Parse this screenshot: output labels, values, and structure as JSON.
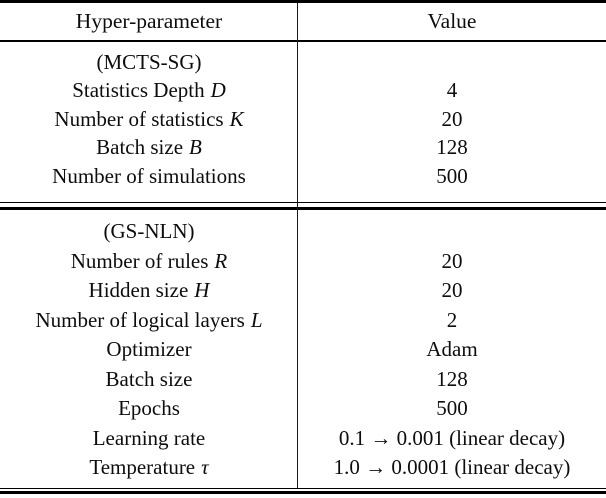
{
  "table": {
    "header": {
      "param_label": "Hyper-parameter",
      "value_label": "Value"
    },
    "sections": [
      {
        "title": "(MCTS-SG)",
        "rows": [
          {
            "label": "Statistics Depth",
            "var": "D",
            "value": "4"
          },
          {
            "label": "Number of statistics",
            "var": "K",
            "value": "20"
          },
          {
            "label": "Batch size",
            "var": "B",
            "value": "128"
          },
          {
            "label": "Number of simulations",
            "var": "",
            "value": "500"
          }
        ]
      },
      {
        "title": "(GS-NLN)",
        "rows": [
          {
            "label": "Number of rules",
            "var": "R",
            "value": "20"
          },
          {
            "label": "Hidden size",
            "var": "H",
            "value": "20"
          },
          {
            "label": "Number of logical layers",
            "var": "L",
            "value": "2"
          },
          {
            "label": "Optimizer",
            "var": "",
            "value": "Adam"
          },
          {
            "label": "Batch size",
            "var": "",
            "value": "128"
          },
          {
            "label": "Epochs",
            "var": "",
            "value": "500"
          },
          {
            "label": "Learning rate",
            "var": "",
            "value": "0.1 → 0.001 (linear decay)"
          },
          {
            "label": "Temperature",
            "var": "τ",
            "value": "1.0 → 0.0001 (linear decay)"
          }
        ]
      }
    ]
  },
  "colors": {
    "text": "#0d0d0d",
    "rule": "#000000",
    "background": "#ffffff"
  }
}
